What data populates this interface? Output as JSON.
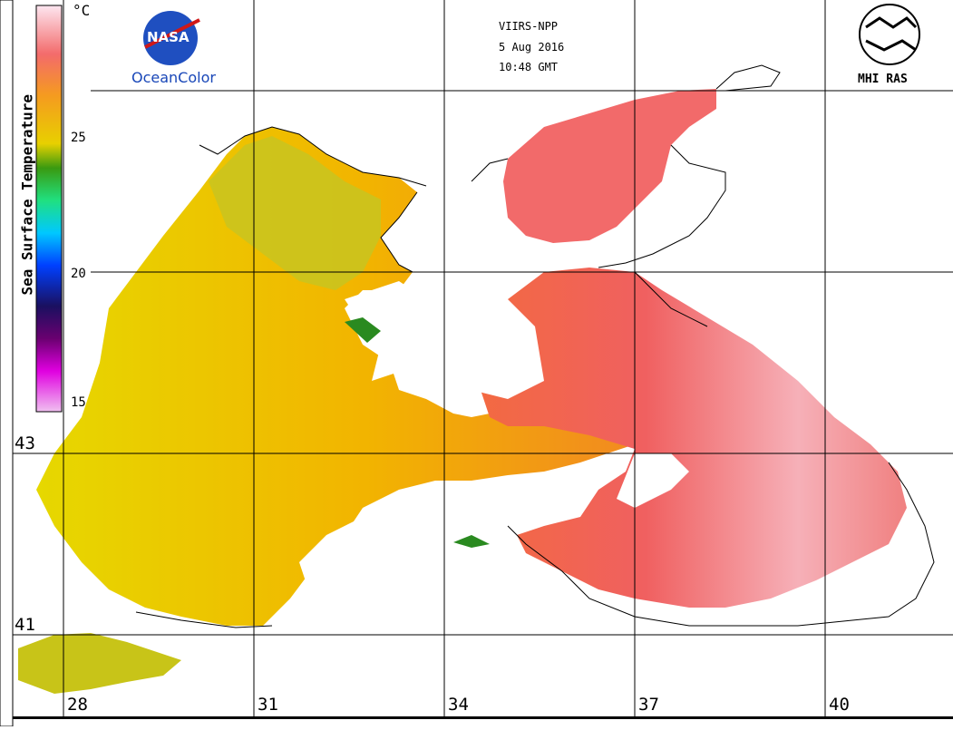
{
  "header": {
    "sensor": "VIIRS-NPP",
    "date": "5 Aug 2016",
    "time": "10:48 GMT"
  },
  "logos": {
    "nasa_text": "OceanColor",
    "nasa_badge": "NASA",
    "mhi_text": "MHI RAS"
  },
  "colorbar": {
    "title": "Sea Surface Temperature",
    "unit": "°C",
    "ticks": [
      "25",
      "20",
      "15"
    ],
    "colors": [
      "#fde6f0",
      "#f36b6b",
      "#f59a20",
      "#e8d000",
      "#3a9a10",
      "#20e080",
      "#00c8ff",
      "#0040ff",
      "#1a1060",
      "#6a0070",
      "#e000e0",
      "#f0b0f0"
    ]
  },
  "grid": {
    "lat_labels": [
      "43",
      "41"
    ],
    "lon_labels": [
      "28",
      "31",
      "34",
      "37",
      "40"
    ]
  }
}
